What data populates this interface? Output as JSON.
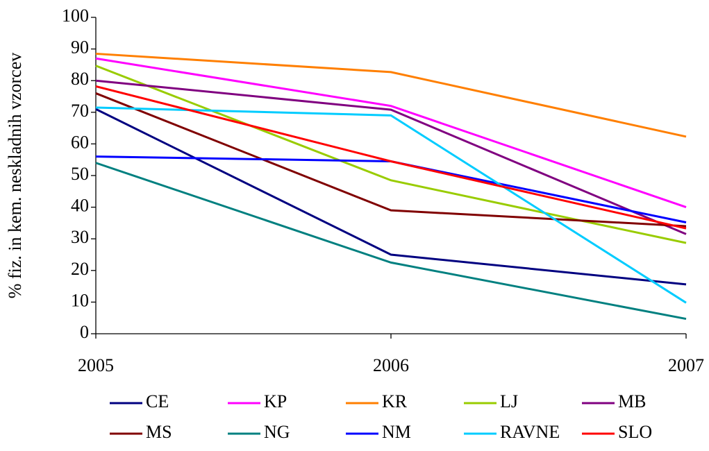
{
  "chart_data": {
    "type": "line",
    "y_label": "% fiz. in kem. neskladnih vzorcev",
    "x": [
      2005,
      2006,
      2007
    ],
    "xlim": [
      2005,
      2007
    ],
    "xticks": [
      2005,
      2006,
      2007
    ],
    "ylim": [
      0,
      100
    ],
    "yticks": [
      0,
      10,
      20,
      30,
      40,
      50,
      60,
      70,
      80,
      90,
      100
    ],
    "grid": false,
    "legend": "bottom",
    "series": [
      {
        "name": "CE",
        "color": "#000080",
        "values": [
          71,
          25,
          15.6
        ]
      },
      {
        "name": "KP",
        "color": "#ff00ff",
        "values": [
          87,
          72,
          40
        ]
      },
      {
        "name": "KR",
        "color": "#ff7f00",
        "values": [
          88.5,
          82.7,
          62.3
        ]
      },
      {
        "name": "LJ",
        "color": "#99cc00",
        "values": [
          84.7,
          48.5,
          28.7
        ]
      },
      {
        "name": "MB",
        "color": "#800080",
        "values": [
          80,
          70.8,
          31.5
        ]
      },
      {
        "name": "MS",
        "color": "#800000",
        "values": [
          76,
          39,
          34
        ]
      },
      {
        "name": "NG",
        "color": "#008080",
        "values": [
          54,
          22.5,
          4.7
        ]
      },
      {
        "name": "NM",
        "color": "#0000ff",
        "values": [
          56,
          54.5,
          35.2
        ]
      },
      {
        "name": "RAVNE",
        "color": "#00ccff",
        "values": [
          71.5,
          69,
          9.8
        ]
      },
      {
        "name": "SLO",
        "color": "#ff0000",
        "values": [
          78.2,
          54.5,
          33.3
        ]
      }
    ]
  }
}
